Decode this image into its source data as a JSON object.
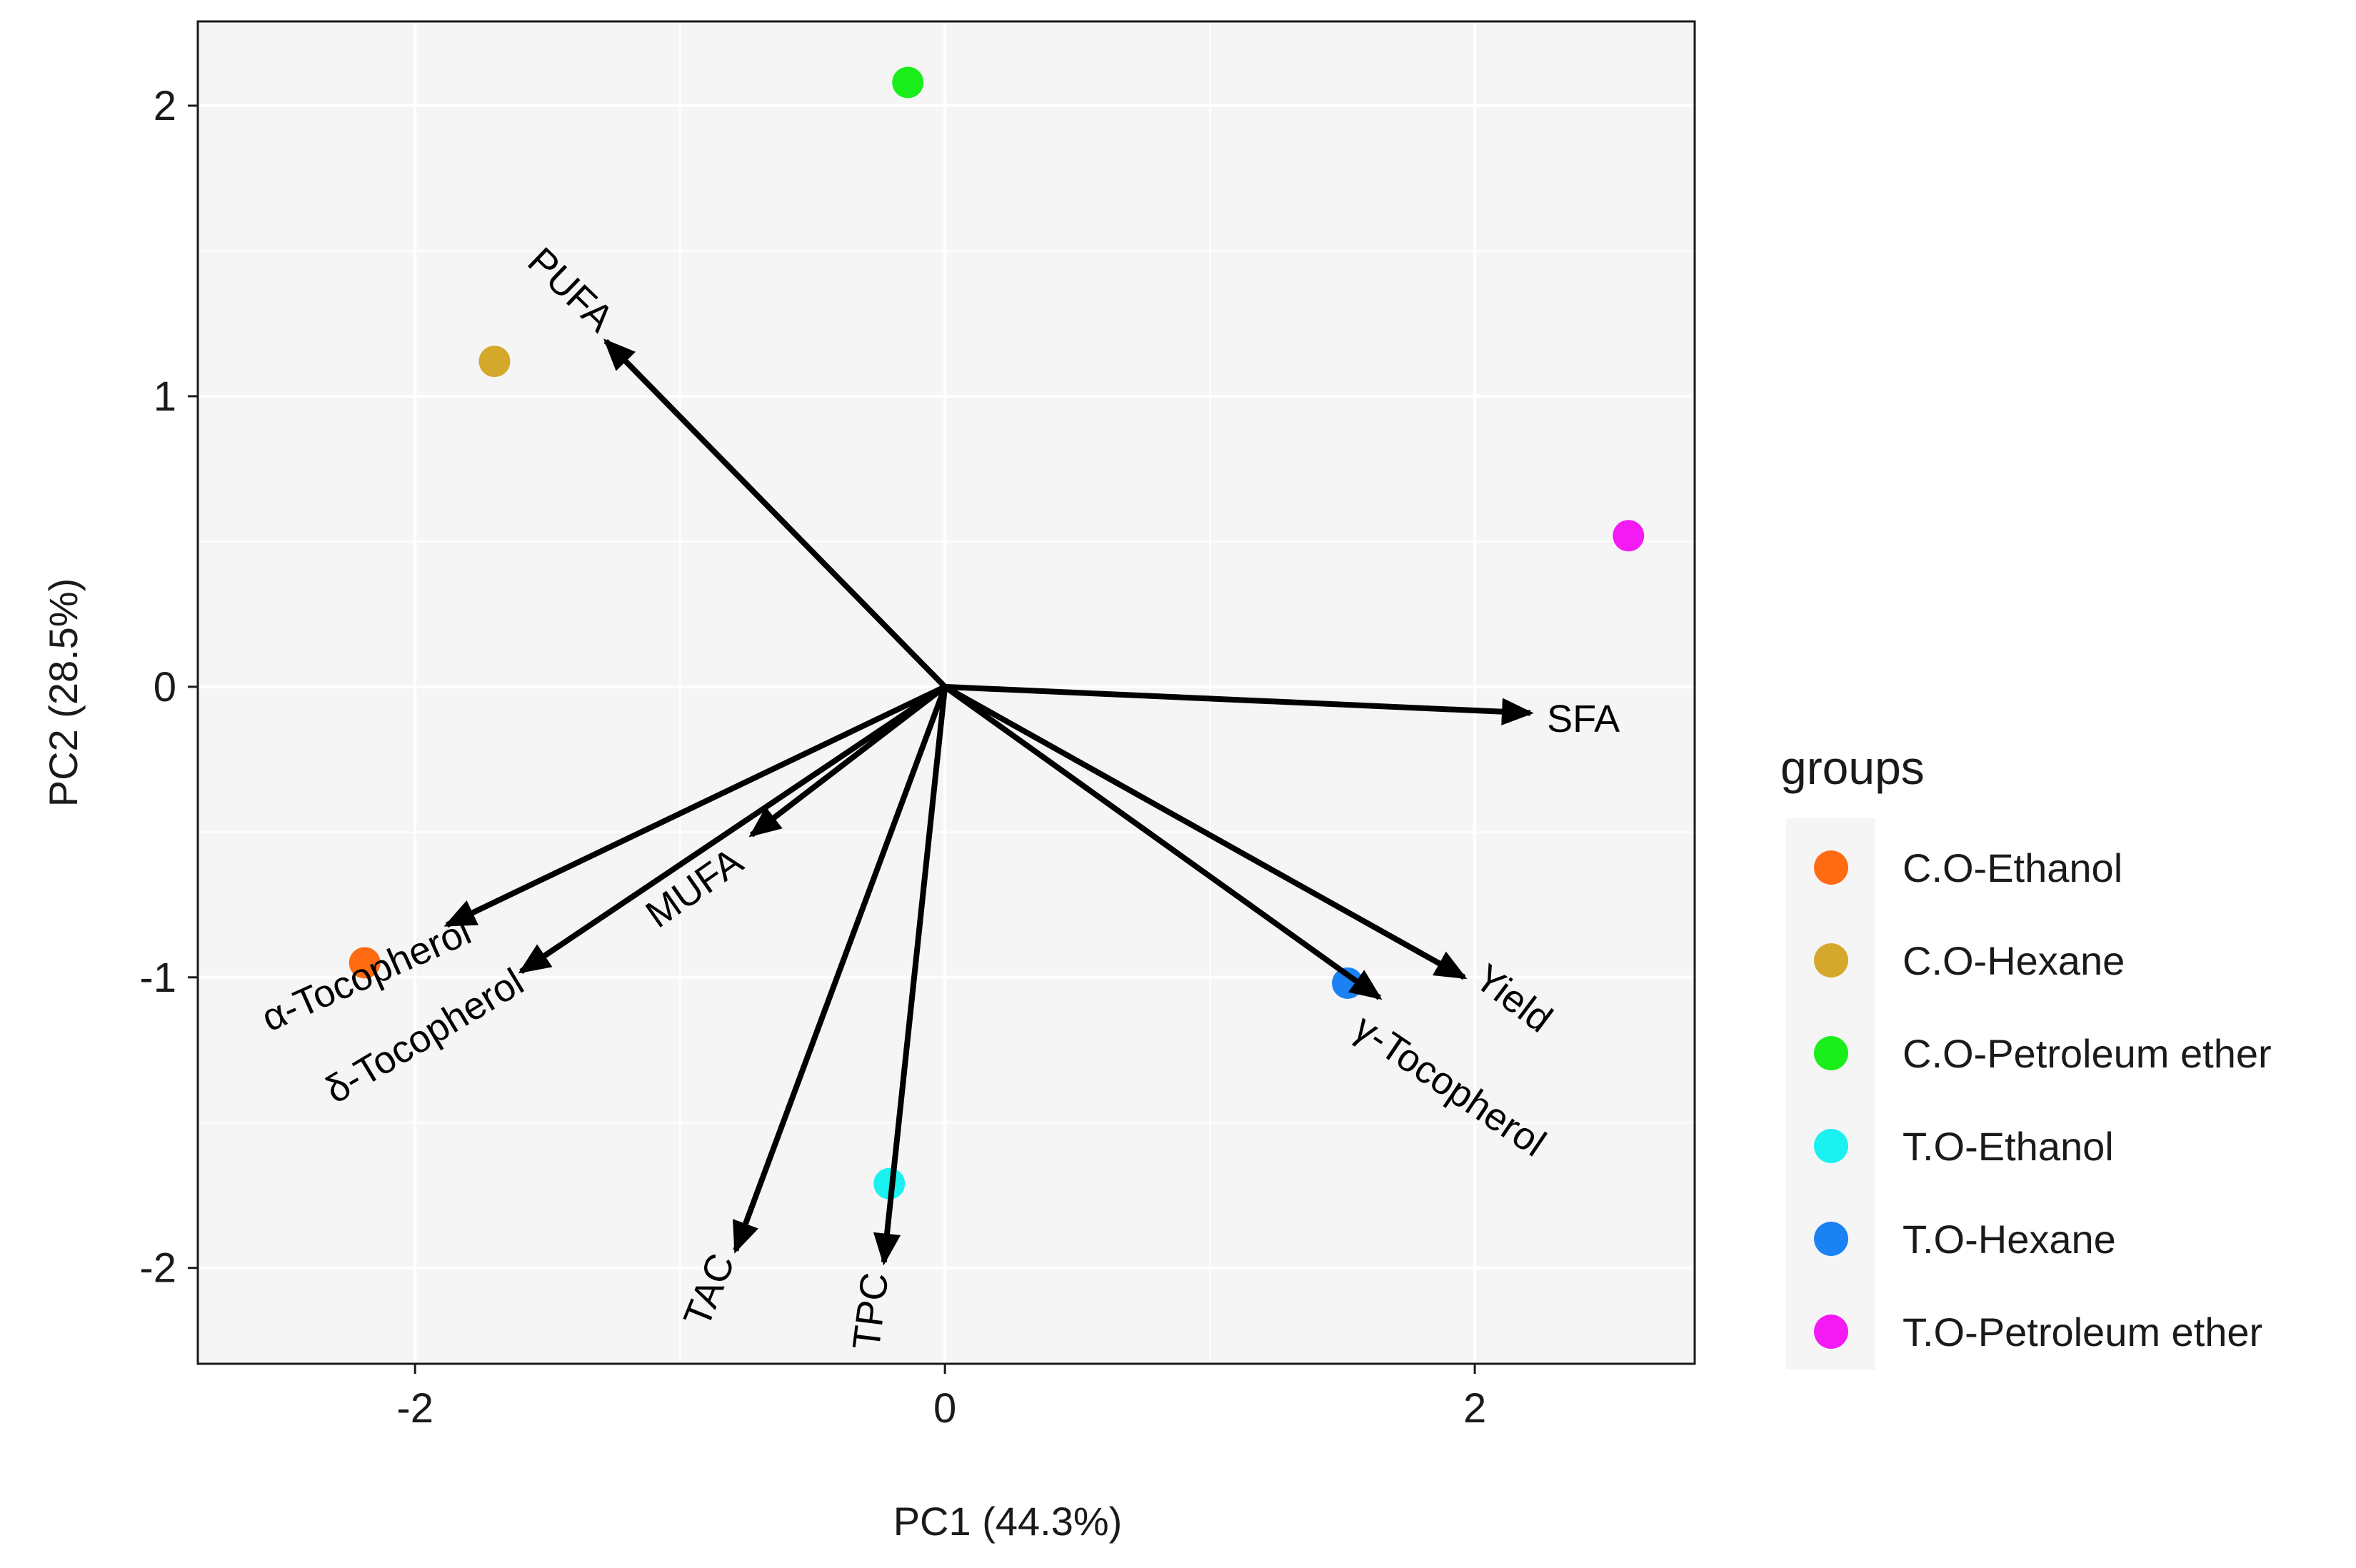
{
  "chart_data": {
    "type": "scatter",
    "subtype": "pca-biplot",
    "title": "",
    "xlabel": "PC1 (44.3%)",
    "ylabel": "PC2 (28.5%)",
    "xlim": [
      -2.82,
      2.83
    ],
    "ylim": [
      -2.33,
      2.29
    ],
    "grid": true,
    "x_ticks": [
      -2,
      0,
      2
    ],
    "x_tick_labels": [
      "-2",
      "0",
      "2"
    ],
    "y_ticks": [
      -2,
      -1,
      0,
      1,
      2
    ],
    "y_tick_labels": [
      "-2",
      "-1",
      "0",
      "1",
      "2"
    ],
    "legend": {
      "title": "groups",
      "position": "right",
      "entries": [
        {
          "label": "C.O-Ethanol",
          "color": "#ff6a13"
        },
        {
          "label": "C.O-Hexane",
          "color": "#d4a82a"
        },
        {
          "label": "C.O-Petroleum ether",
          "color": "#1aee1a"
        },
        {
          "label": "T.O-Ethanol",
          "color": "#1af1f1"
        },
        {
          "label": "T.O-Hexane",
          "color": "#1a82f2"
        },
        {
          "label": "T.O-Petroleum ether",
          "color": "#f41af4"
        }
      ]
    },
    "points": [
      {
        "group": "C.O-Ethanol",
        "x": -2.19,
        "y": -0.95,
        "color": "#ff6a13"
      },
      {
        "group": "C.O-Hexane",
        "x": -1.7,
        "y": 1.12,
        "color": "#d4a82a"
      },
      {
        "group": "C.O-Petroleum ether",
        "x": -0.14,
        "y": 2.08,
        "color": "#1aee1a"
      },
      {
        "group": "T.O-Ethanol",
        "x": -0.21,
        "y": -1.71,
        "color": "#1af1f1"
      },
      {
        "group": "T.O-Hexane",
        "x": 1.52,
        "y": -1.02,
        "color": "#1a82f2"
      },
      {
        "group": "T.O-Petroleum ether",
        "x": 2.58,
        "y": 0.52,
        "color": "#f41af4"
      }
    ],
    "loadings": [
      {
        "label": "PUFA",
        "x": -1.28,
        "y": 1.19,
        "label_x": -1.42,
        "label_y": 1.36,
        "rotation": 44
      },
      {
        "label": "SFA",
        "x": 2.21,
        "y": -0.09,
        "label_x": 2.41,
        "label_y": -0.12,
        "rotation": 0
      },
      {
        "label": "MUFA",
        "x": -0.73,
        "y": -0.51,
        "label_x": -0.94,
        "label_y": -0.7,
        "rotation": -35
      },
      {
        "label": "α-Tocopherol",
        "x": -1.88,
        "y": -0.82,
        "label_x": -2.18,
        "label_y": -1.0,
        "rotation": -24
      },
      {
        "label": "δ-Tocopherol",
        "x": -1.6,
        "y": -0.98,
        "label_x": -1.96,
        "label_y": -1.21,
        "rotation": -31
      },
      {
        "label": "TAC",
        "x": -0.79,
        "y": -1.94,
        "label_x": -0.88,
        "label_y": -2.08,
        "rotation": -68
      },
      {
        "label": "TPC",
        "x": -0.23,
        "y": -1.98,
        "label_x": -0.27,
        "label_y": -2.15,
        "rotation": -83
      },
      {
        "label": "Yield",
        "x": 1.96,
        "y": -1.0,
        "label_x": 2.14,
        "label_y": -1.08,
        "rotation": 37
      },
      {
        "label": "γ-Tocopherol",
        "x": 1.64,
        "y": -1.07,
        "label_x": 1.9,
        "label_y": -1.38,
        "rotation": 34
      }
    ]
  }
}
